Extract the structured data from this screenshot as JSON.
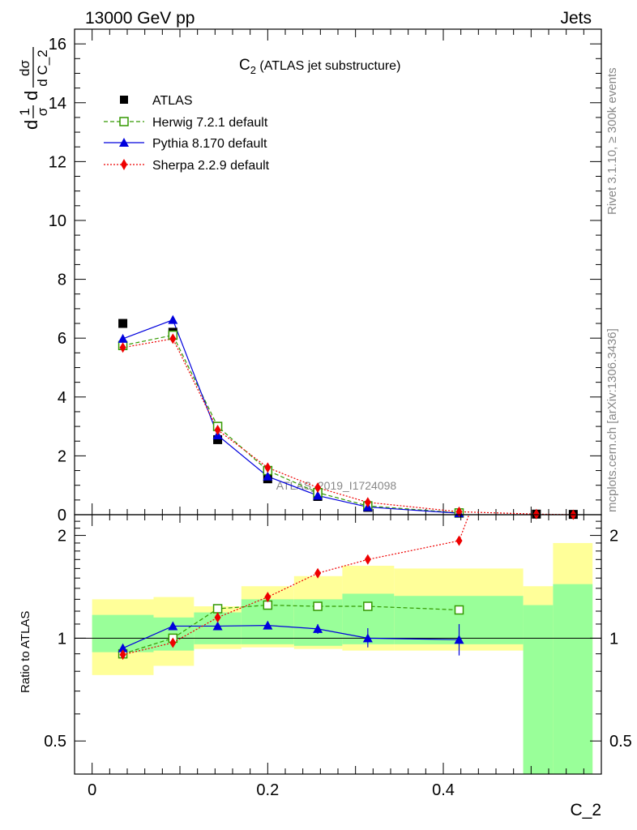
{
  "header": {
    "left": "13000 GeV pp",
    "right": "Jets"
  },
  "side_labels": {
    "rivet": "Rivet 3.1.10, ≥ 300k events",
    "mcplots": "mcplots.cern.ch [arXiv:1306.3436]"
  },
  "watermark": "ATLAS_2019_I1724098",
  "plot_title": {
    "main": "C",
    "sub": "2",
    "rest": " (ATLAS jet substructure)"
  },
  "chart_data": [
    {
      "type": "scatter",
      "ylabel": {
        "frac1_num": "1",
        "frac1_den": "σ",
        "frac2_num": "dσ",
        "frac2_den": "d C_2",
        "prefix": "d"
      },
      "xlabel": "C_2",
      "xlim": [
        -0.02,
        0.58
      ],
      "ylim": [
        0,
        16.5
      ],
      "yticks": [
        0,
        2,
        4,
        6,
        8,
        10,
        12,
        14,
        16
      ],
      "yticklabels": [
        "0",
        "2",
        "4",
        "6",
        "8",
        "10",
        "12",
        "14",
        "16"
      ],
      "series": [
        {
          "name": "ATLAS",
          "color": "#000000",
          "marker": "square-filled",
          "line": "none",
          "x": [
            0.035,
            0.092,
            0.143,
            0.2,
            0.257,
            0.314,
            0.418,
            0.506,
            0.548
          ],
          "y": [
            6.5,
            6.2,
            2.55,
            1.22,
            0.62,
            0.25,
            0.05,
            0.02,
            0.01
          ]
        },
        {
          "name": "Herwig 7.2.1 default",
          "color": "#339900",
          "marker": "square-open",
          "line": "dashed",
          "x": [
            0.035,
            0.092,
            0.143,
            0.2,
            0.257,
            0.314,
            0.418
          ],
          "y": [
            5.75,
            6.1,
            3.0,
            1.5,
            0.75,
            0.3,
            0.06
          ]
        },
        {
          "name": "Pythia 8.170 default",
          "color": "#0000dd",
          "marker": "triangle-filled",
          "line": "solid",
          "x": [
            0.035,
            0.092,
            0.143,
            0.2,
            0.257,
            0.314,
            0.418
          ],
          "y": [
            5.98,
            6.62,
            2.7,
            1.3,
            0.65,
            0.26,
            0.05
          ]
        },
        {
          "name": "Sherpa 2.2.9 default",
          "color": "#ee0000",
          "marker": "diamond-filled",
          "line": "dotted",
          "x": [
            0.035,
            0.092,
            0.143,
            0.2,
            0.257,
            0.314,
            0.418,
            0.506,
            0.548
          ],
          "y": [
            5.68,
            5.98,
            2.88,
            1.6,
            0.92,
            0.42,
            0.1,
            0.02,
            0.0
          ]
        }
      ]
    },
    {
      "type": "scatter",
      "ylabel": "Ratio to ATLAS",
      "xlabel": "C_2",
      "xlim": [
        -0.02,
        0.58
      ],
      "ylim": [
        0.4,
        2.3
      ],
      "log_y": true,
      "yticks": [
        0.5,
        1,
        2
      ],
      "yticklabels": [
        "0.5",
        "1",
        "2"
      ],
      "xticks": [
        0,
        0.2,
        0.4
      ],
      "xticklabels": [
        "0",
        "0.2",
        "0.4"
      ],
      "bands": {
        "bins": [
          [
            0.0,
            0.07
          ],
          [
            0.07,
            0.116
          ],
          [
            0.116,
            0.17
          ],
          [
            0.17,
            0.23
          ],
          [
            0.23,
            0.285
          ],
          [
            0.285,
            0.344
          ],
          [
            0.344,
            0.491
          ],
          [
            0.491,
            0.525
          ],
          [
            0.525,
            0.57
          ]
        ],
        "yellow": [
          [
            0.78,
            1.3
          ],
          [
            0.83,
            1.32
          ],
          [
            0.93,
            1.24
          ],
          [
            0.94,
            1.42
          ],
          [
            0.93,
            1.52
          ],
          [
            0.92,
            1.63
          ],
          [
            0.92,
            1.6
          ],
          [
            0.38,
            1.42
          ],
          [
            0.38,
            1.9
          ]
        ],
        "green": [
          [
            0.91,
            1.17
          ],
          [
            0.92,
            1.15
          ],
          [
            0.96,
            1.19
          ],
          [
            0.96,
            1.3
          ],
          [
            0.95,
            1.3
          ],
          [
            0.96,
            1.35
          ],
          [
            0.96,
            1.33
          ],
          [
            0.38,
            1.25
          ],
          [
            0.38,
            1.44
          ]
        ],
        "yellow_color": "#ffff99",
        "green_color": "#99ff99"
      },
      "series": [
        {
          "name": "Herwig 7.2.1 default",
          "color": "#339900",
          "marker": "square-open",
          "line": "dashed",
          "x": [
            0.035,
            0.092,
            0.143,
            0.2,
            0.257,
            0.314,
            0.418
          ],
          "y": [
            0.9,
            1.0,
            1.22,
            1.25,
            1.24,
            1.24,
            1.21
          ],
          "err": [
            [
              0.88,
              0.92
            ],
            [
              0.98,
              1.02
            ],
            [
              1.2,
              1.24
            ],
            [
              1.22,
              1.28
            ],
            [
              1.21,
              1.27
            ],
            [
              1.21,
              1.27
            ],
            [
              1.18,
              1.24
            ]
          ]
        },
        {
          "name": "Pythia 8.170 default",
          "color": "#0000dd",
          "marker": "triangle-filled",
          "line": "solid",
          "x": [
            0.035,
            0.092,
            0.143,
            0.2,
            0.257,
            0.314,
            0.418
          ],
          "y": [
            0.935,
            1.085,
            1.085,
            1.09,
            1.065,
            1.0,
            0.99
          ],
          "err": [
            [
              0.92,
              0.95
            ],
            [
              1.065,
              1.105
            ],
            [
              1.06,
              1.11
            ],
            [
              1.065,
              1.115
            ],
            [
              1.03,
              1.1
            ],
            [
              0.94,
              1.07
            ],
            [
              0.89,
              1.1
            ]
          ]
        },
        {
          "name": "Sherpa 2.2.9 default",
          "color": "#ee0000",
          "marker": "diamond-filled",
          "line": "dotted",
          "x": [
            0.035,
            0.092,
            0.143,
            0.2,
            0.257,
            0.314,
            0.418,
            0.432
          ],
          "y": [
            0.895,
            0.97,
            1.15,
            1.32,
            1.55,
            1.7,
            1.93,
            2.4
          ],
          "err": [
            [
              0.88,
              0.91
            ],
            [
              0.95,
              0.99
            ],
            [
              1.13,
              1.17
            ],
            [
              1.3,
              1.35
            ],
            [
              1.52,
              1.58
            ],
            [
              1.67,
              1.73
            ],
            [
              1.9,
              1.97
            ],
            [
              2.4,
              2.4
            ]
          ],
          "marker_count": 7
        }
      ]
    }
  ]
}
